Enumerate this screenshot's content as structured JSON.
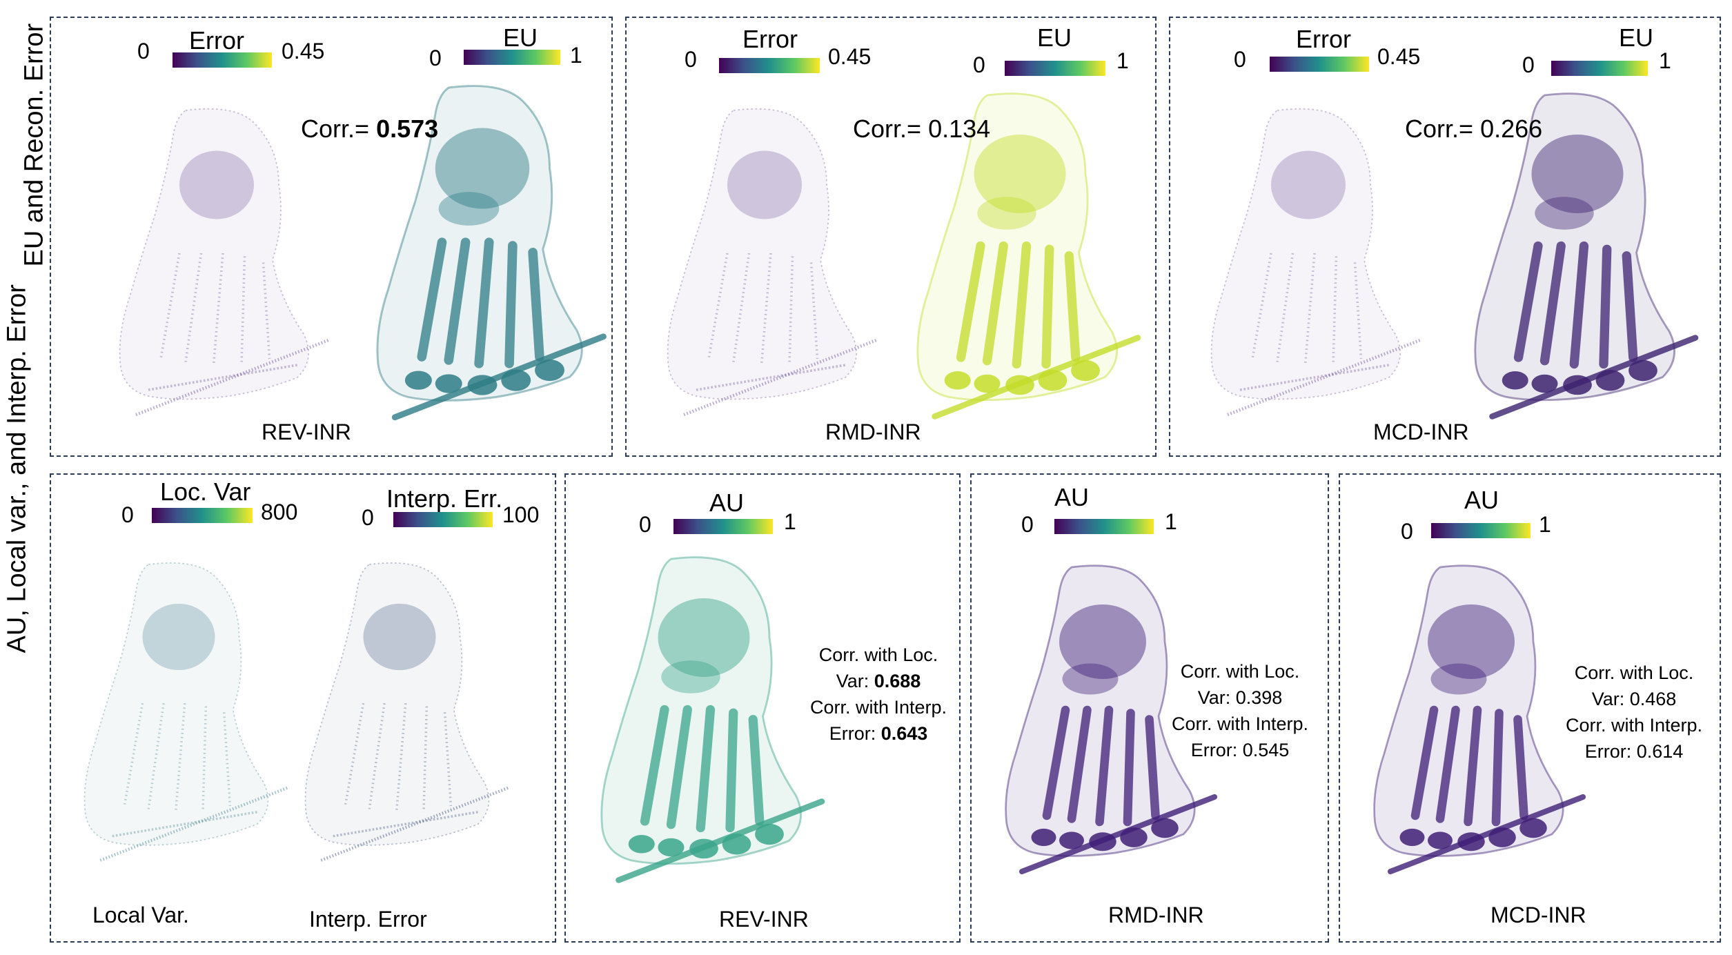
{
  "row_labels": {
    "top": "EU and Recon. Error",
    "bottom": "AU, Local var., and  Interp. Error"
  },
  "top_row": {
    "panels": [
      {
        "caption": "REV-INR",
        "error_bar": {
          "title": "Error",
          "min": "0",
          "max": "0.45"
        },
        "eu_bar": {
          "title": "EU",
          "min": "0",
          "max": "1"
        },
        "corr_label": "Corr.=",
        "corr_value": "0.573",
        "corr_bold": true
      },
      {
        "caption": "RMD-INR",
        "error_bar": {
          "title": "Error",
          "min": "0",
          "max": "0.45"
        },
        "eu_bar": {
          "title": "EU",
          "min": "0",
          "max": "1"
        },
        "corr_label": "Corr.=",
        "corr_value": "0.134",
        "corr_bold": false
      },
      {
        "caption": "MCD-INR",
        "error_bar": {
          "title": "Error",
          "min": "0",
          "max": "0.45"
        },
        "eu_bar": {
          "title": "EU",
          "min": "0",
          "max": "1"
        },
        "corr_label": "Corr.=",
        "corr_value": "0.266",
        "corr_bold": false
      }
    ]
  },
  "bottom_row": {
    "reference": {
      "locvar_bar": {
        "title": "Loc. Var",
        "min": "0",
        "max": "800"
      },
      "interp_bar": {
        "title": "Interp. Err.",
        "min": "0",
        "max": "100"
      },
      "caption_left": "Local Var.",
      "caption_right": "Interp. Error"
    },
    "panels": [
      {
        "caption": "REV-INR",
        "au_bar": {
          "title": "AU",
          "min": "0",
          "max": "1"
        },
        "line1": "Corr. with Loc.",
        "line2_label": "Var: ",
        "line2_value": "0.688",
        "line3": "Corr. with Interp.",
        "line4_label": "Error: ",
        "line4_value": "0.643"
      },
      {
        "caption": "RMD-INR",
        "au_bar": {
          "title": "AU",
          "min": "0",
          "max": "1"
        },
        "line1": "Corr. with Loc.",
        "line2_label": "Var: ",
        "line2_value": "0.398",
        "line3": "Corr. with Interp.",
        "line4_label": "Error: ",
        "line4_value": "0.545"
      },
      {
        "caption": "MCD-INR",
        "au_bar": {
          "title": "AU",
          "min": "0",
          "max": "1"
        },
        "line1": "Corr. with Loc.",
        "line2_label": "Var: ",
        "line2_value": "0.468",
        "line3": "Corr. with Interp.",
        "line4_label": "Error: ",
        "line4_value": "0.614"
      }
    ]
  },
  "colors": {
    "viridis": [
      "#440154",
      "#3b528b",
      "#21918c",
      "#5ec962",
      "#fde725"
    ],
    "panel_border": "#2b3b55",
    "error_volume": "#6a4c93",
    "rev_eu_volume": "#2e7d86",
    "rmd_eu_volume": "#c4dd2a",
    "mcd_eu_volume": "#3d2370",
    "rev_au_volume": "#3aa58a",
    "purple_au_volume": "#3f1f77"
  }
}
